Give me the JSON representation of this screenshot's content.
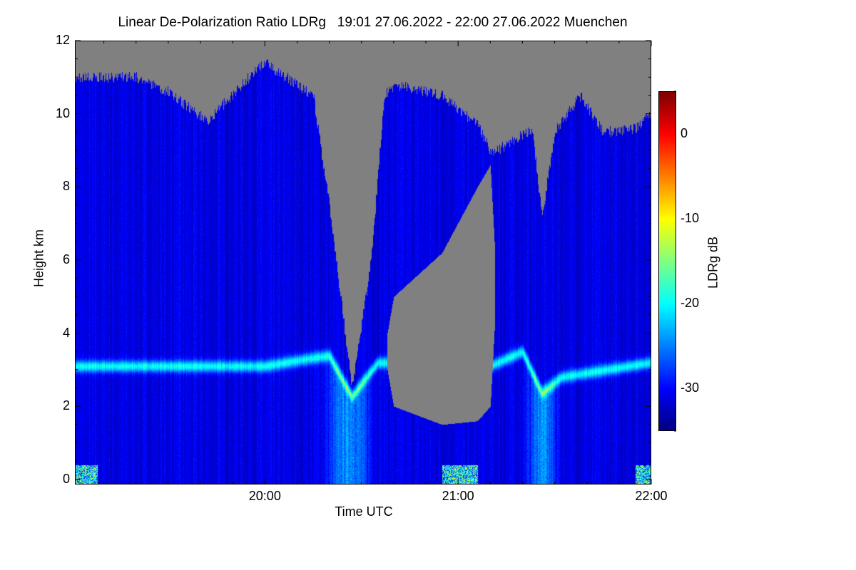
{
  "chart_data": {
    "type": "heatmap",
    "title": "Linear De-Polarization Ratio LDRg   19:01 27.06.2022 - 22:00 27.06.2022 Muenchen",
    "xlabel": "Time UTC",
    "ylabel": "Height km",
    "colorbar_label": "LDRg dB",
    "x_range_minutes_after_1900": [
      1,
      180
    ],
    "y_range_km": [
      -0.14,
      12
    ],
    "x_ticks": [
      {
        "label": "20:00",
        "t": 60
      },
      {
        "label": "21:00",
        "t": 120
      },
      {
        "label": "22:00",
        "t": 180
      }
    ],
    "y_ticks": [
      {
        "label": "0",
        "v": 0
      },
      {
        "label": "2",
        "v": 2
      },
      {
        "label": "4",
        "v": 4
      },
      {
        "label": "6",
        "v": 6
      },
      {
        "label": "8",
        "v": 8
      },
      {
        "label": "10",
        "v": 10
      },
      {
        "label": "12",
        "v": 12
      }
    ],
    "colorbar_range_db": [
      -35,
      5
    ],
    "colorbar_ticks": [
      {
        "label": "0",
        "v": 0
      },
      {
        "label": "-10",
        "v": -10
      },
      {
        "label": "-20",
        "v": -20
      },
      {
        "label": "-30",
        "v": -30
      }
    ],
    "colormap": "jet",
    "no_data_color": "#808080",
    "background_ldr_db": -32,
    "melting_layer_peak_db": -20,
    "cloud_profile": [
      {
        "t": 1,
        "top": 11.0
      },
      {
        "t": 20,
        "top": 11.0
      },
      {
        "t": 30,
        "top": 10.6
      },
      {
        "t": 42,
        "top": 9.8
      },
      {
        "t": 55,
        "top": 11.0
      },
      {
        "t": 60,
        "top": 11.4
      },
      {
        "t": 75,
        "top": 10.5
      },
      {
        "t": 80,
        "top": 7.5
      },
      {
        "t": 87,
        "top": 2.5
      },
      {
        "t": 93,
        "top": 6.0
      },
      {
        "t": 97,
        "top": 10.5
      },
      {
        "t": 100,
        "top": 10.8,
        "gap": [
          2.0,
          5.0
        ]
      },
      {
        "t": 115,
        "top": 10.5,
        "gap": [
          1.5,
          6.2
        ]
      },
      {
        "t": 126,
        "top": 9.7,
        "gap": [
          1.6,
          8.0
        ]
      },
      {
        "t": 130,
        "top": 9.0,
        "gap": [
          2.0,
          8.6
        ]
      },
      {
        "t": 132,
        "top": 9.0
      },
      {
        "t": 143,
        "top": 9.6
      },
      {
        "t": 146,
        "top": 7.2
      },
      {
        "t": 150,
        "top": 9.5
      },
      {
        "t": 158,
        "top": 10.5
      },
      {
        "t": 165,
        "top": 9.5
      },
      {
        "t": 175,
        "top": 9.6
      },
      {
        "t": 180,
        "top": 10.0
      }
    ],
    "melting_layer": [
      {
        "t": 1,
        "h": 3.1
      },
      {
        "t": 60,
        "h": 3.1
      },
      {
        "t": 80,
        "h": 3.4
      },
      {
        "t": 87,
        "h": 2.3
      },
      {
        "t": 95,
        "h": 3.2
      },
      {
        "t": 130,
        "h": 3.1
      },
      {
        "t": 140,
        "h": 3.5
      },
      {
        "t": 146,
        "h": 2.4
      },
      {
        "t": 152,
        "h": 2.8
      },
      {
        "t": 180,
        "h": 3.2
      }
    ],
    "precip_plumes": [
      {
        "t": 86,
        "width": 6
      },
      {
        "t": 146,
        "width": 4
      }
    ]
  }
}
